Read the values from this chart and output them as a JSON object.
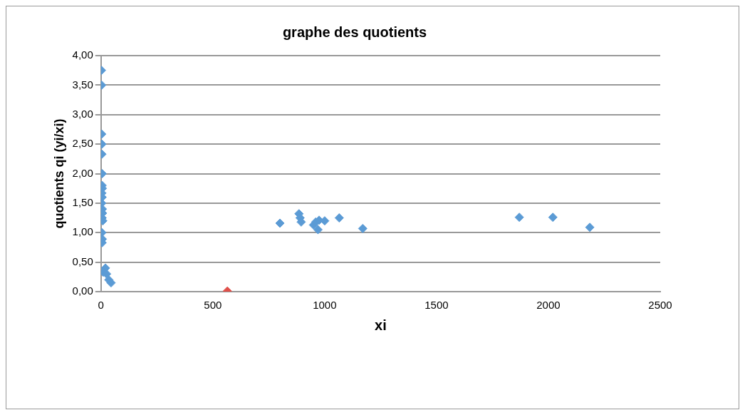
{
  "chart_data": {
    "type": "scatter",
    "title": "graphe des quotients",
    "xlabel": "xi",
    "ylabel": "quotients qi (yi/xi)",
    "x": [
      2,
      3,
      3,
      4,
      4,
      5,
      5,
      6,
      4,
      5,
      3,
      6,
      7,
      5,
      8,
      4,
      6,
      5,
      20,
      10,
      25,
      35,
      45,
      565,
      800,
      885,
      890,
      895,
      950,
      960,
      970,
      975,
      1000,
      1065,
      1170,
      1870,
      2020,
      2185
    ],
    "values": [
      3.75,
      3.5,
      2.67,
      2.5,
      2.33,
      2.0,
      1.8,
      1.75,
      1.67,
      1.6,
      1.5,
      1.4,
      1.33,
      1.25,
      1.2,
      1.0,
      0.89,
      0.83,
      0.4,
      0.33,
      0.3,
      0.2,
      0.15,
      0.01,
      1.16,
      1.32,
      1.25,
      1.18,
      1.13,
      1.18,
      1.05,
      1.21,
      1.2,
      1.25,
      1.07,
      1.26,
      1.26,
      1.09
    ],
    "colors": [
      "#5b9bd5",
      "#5b9bd5",
      "#5b9bd5",
      "#5b9bd5",
      "#5b9bd5",
      "#5b9bd5",
      "#5b9bd5",
      "#5b9bd5",
      "#5b9bd5",
      "#5b9bd5",
      "#5b9bd5",
      "#5b9bd5",
      "#5b9bd5",
      "#5b9bd5",
      "#5b9bd5",
      "#5b9bd5",
      "#5b9bd5",
      "#5b9bd5",
      "#5b9bd5",
      "#5b9bd5",
      "#5b9bd5",
      "#5b9bd5",
      "#5b9bd5",
      "#e0504a",
      "#5b9bd5",
      "#5b9bd5",
      "#5b9bd5",
      "#5b9bd5",
      "#5b9bd5",
      "#5b9bd5",
      "#5b9bd5",
      "#5b9bd5",
      "#5b9bd5",
      "#5b9bd5",
      "#5b9bd5",
      "#5b9bd5",
      "#5b9bd5",
      "#5b9bd5"
    ],
    "xlim": [
      0,
      2500
    ],
    "xticks": [
      0,
      500,
      1000,
      1500,
      2000,
      2500
    ],
    "ylim": [
      0,
      4
    ],
    "yticks": [
      {
        "value": 0,
        "label": "0,00"
      },
      {
        "value": 0.5,
        "label": "0,50"
      },
      {
        "value": 1,
        "label": "1,00"
      },
      {
        "value": 1.5,
        "label": "1,50"
      },
      {
        "value": 2,
        "label": "2,00"
      },
      {
        "value": 2.5,
        "label": "2,50"
      },
      {
        "value": 3,
        "label": "3,00"
      },
      {
        "value": 3.5,
        "label": "3,50"
      },
      {
        "value": 4,
        "label": "4,00"
      }
    ],
    "grid": "y",
    "marker": "diamond",
    "legend": false
  }
}
